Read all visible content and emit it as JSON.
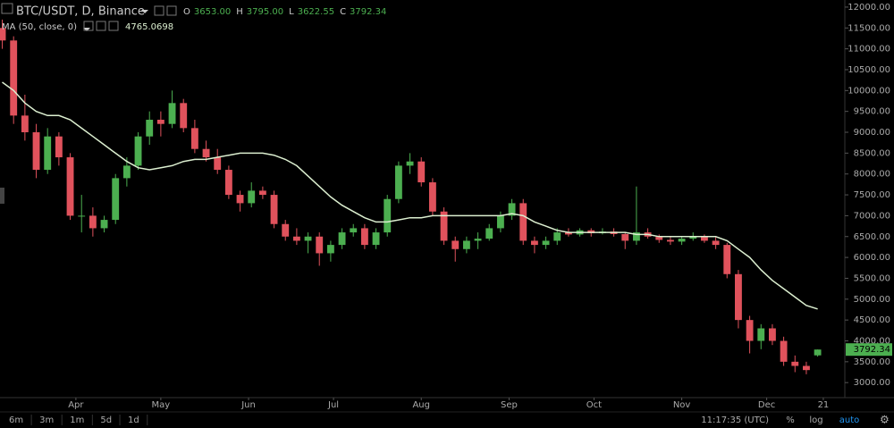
{
  "chart_data": {
    "type": "candlestick",
    "title": "BTC/USDT, D, Binance",
    "ohlc_header": [
      {
        "label": "O",
        "value": "3653.00"
      },
      {
        "label": "H",
        "value": "3795.00"
      },
      {
        "label": "L",
        "value": "3622.55"
      },
      {
        "label": "C",
        "value": "3792.34"
      }
    ],
    "up_color": "#4caf50",
    "down_color": "#e0525c",
    "ohlc": [
      [
        11500,
        11700,
        11000,
        11200
      ],
      [
        11200,
        11300,
        9200,
        9400
      ],
      [
        9400,
        9900,
        8800,
        9000
      ],
      [
        9000,
        9200,
        7900,
        8100
      ],
      [
        8100,
        9100,
        8000,
        8900
      ],
      [
        8900,
        9000,
        8200,
        8400
      ],
      [
        8400,
        8500,
        6900,
        7000
      ],
      [
        7000,
        7500,
        6600,
        7000
      ],
      [
        7000,
        7200,
        6500,
        6700
      ],
      [
        6700,
        7000,
        6600,
        6900
      ],
      [
        6900,
        8000,
        6800,
        7900
      ],
      [
        7900,
        8400,
        7700,
        8200
      ],
      [
        8200,
        9000,
        8100,
        8900
      ],
      [
        8900,
        9500,
        8700,
        9300
      ],
      [
        9300,
        9500,
        8900,
        9200
      ],
      [
        9200,
        10000,
        9100,
        9700
      ],
      [
        9700,
        9800,
        9000,
        9100
      ],
      [
        9100,
        9300,
        8500,
        8600
      ],
      [
        8600,
        8800,
        8300,
        8400
      ],
      [
        8400,
        8600,
        8000,
        8100
      ],
      [
        8100,
        8200,
        7400,
        7500
      ],
      [
        7500,
        7600,
        7100,
        7300
      ],
      [
        7300,
        7800,
        7200,
        7600
      ],
      [
        7600,
        7700,
        7400,
        7500
      ],
      [
        7500,
        7600,
        6700,
        6800
      ],
      [
        6800,
        6900,
        6400,
        6500
      ],
      [
        6500,
        6700,
        6300,
        6400
      ],
      [
        6400,
        6600,
        6100,
        6500
      ],
      [
        6500,
        6600,
        5800,
        6100
      ],
      [
        6100,
        6400,
        5900,
        6300
      ],
      [
        6300,
        6700,
        6200,
        6600
      ],
      [
        6600,
        6800,
        6500,
        6700
      ],
      [
        6700,
        6800,
        6200,
        6300
      ],
      [
        6300,
        6700,
        6200,
        6600
      ],
      [
        6600,
        7500,
        6500,
        7400
      ],
      [
        7400,
        8300,
        7300,
        8200
      ],
      [
        8200,
        8500,
        8000,
        8300
      ],
      [
        8300,
        8400,
        7700,
        7800
      ],
      [
        7800,
        7900,
        7000,
        7100
      ],
      [
        7100,
        7200,
        6300,
        6400
      ],
      [
        6400,
        6500,
        5900,
        6200
      ],
      [
        6200,
        6500,
        6100,
        6400
      ],
      [
        6400,
        6600,
        6200,
        6450
      ],
      [
        6450,
        6800,
        6400,
        6700
      ],
      [
        6700,
        7100,
        6600,
        7000
      ],
      [
        7000,
        7400,
        6900,
        7300
      ],
      [
        7300,
        7400,
        6300,
        6400
      ],
      [
        6400,
        6500,
        6100,
        6300
      ],
      [
        6300,
        6500,
        6200,
        6400
      ],
      [
        6400,
        6700,
        6300,
        6600
      ],
      [
        6600,
        6700,
        6500,
        6550
      ],
      [
        6550,
        6700,
        6500,
        6650
      ],
      [
        6650,
        6700,
        6500,
        6580
      ],
      [
        6580,
        6700,
        6550,
        6620
      ],
      [
        6620,
        6700,
        6500,
        6560
      ],
      [
        6560,
        6600,
        6200,
        6400
      ],
      [
        6400,
        7700,
        6300,
        6600
      ],
      [
        6600,
        6700,
        6450,
        6500
      ],
      [
        6500,
        6550,
        6350,
        6420
      ],
      [
        6420,
        6500,
        6300,
        6380
      ],
      [
        6380,
        6500,
        6300,
        6450
      ],
      [
        6450,
        6600,
        6400,
        6500
      ],
      [
        6500,
        6550,
        6350,
        6400
      ],
      [
        6400,
        6500,
        6200,
        6300
      ],
      [
        6300,
        6350,
        5500,
        5600
      ],
      [
        5600,
        5700,
        4300,
        4500
      ],
      [
        4500,
        4600,
        3700,
        4000
      ],
      [
        4000,
        4400,
        3800,
        4300
      ],
      [
        4300,
        4400,
        3900,
        4000
      ],
      [
        4000,
        4100,
        3400,
        3500
      ],
      [
        3500,
        3650,
        3250,
        3400
      ],
      [
        3400,
        3500,
        3200,
        3300
      ],
      [
        3653,
        3795,
        3622.55,
        3792.34
      ]
    ],
    "ma": {
      "name": "MA (50, close, 0)",
      "color": "#dcefd0",
      "values": [
        10200,
        10000,
        9700,
        9500,
        9400,
        9400,
        9300,
        9100,
        8900,
        8700,
        8500,
        8300,
        8150,
        8100,
        8150,
        8200,
        8300,
        8350,
        8350,
        8400,
        8450,
        8500,
        8500,
        8500,
        8450,
        8350,
        8200,
        7950,
        7700,
        7450,
        7250,
        7100,
        6950,
        6850,
        6850,
        6900,
        6950,
        6950,
        7000,
        7000,
        7000,
        7000,
        7000,
        7000,
        7000,
        7050,
        7000,
        6850,
        6750,
        6650,
        6600,
        6600,
        6600,
        6600,
        6600,
        6600,
        6550,
        6550,
        6500,
        6500,
        6500,
        6500,
        6500,
        6500,
        6400,
        6200,
        6000,
        5700,
        5450,
        5250,
        5050,
        4850,
        4765.0698
      ]
    },
    "xlim": [
      -0.2,
      74.4
    ],
    "xticks": [
      {
        "value": 6.5,
        "label": "Apr"
      },
      {
        "value": 14,
        "label": "May"
      },
      {
        "value": 21.75,
        "label": "Jun"
      },
      {
        "value": 29.25,
        "label": "Jul"
      },
      {
        "value": 37,
        "label": "Aug"
      },
      {
        "value": 44.75,
        "label": "Sep"
      },
      {
        "value": 52.25,
        "label": "Oct"
      },
      {
        "value": 60,
        "label": "Nov"
      },
      {
        "value": 67.5,
        "label": "Dec"
      },
      {
        "value": 72.5,
        "label": "21"
      }
    ],
    "ylim": [
      2640,
      12170
    ],
    "yticks": [
      {
        "value": 3000,
        "label": "3000.00"
      },
      {
        "value": 3500,
        "label": "3500.00"
      },
      {
        "value": 4000,
        "label": "4000.00"
      },
      {
        "value": 4500,
        "label": "4500.00"
      },
      {
        "value": 5000,
        "label": "5000.00"
      },
      {
        "value": 5500,
        "label": "5500.00"
      },
      {
        "value": 6000,
        "label": "6000.00"
      },
      {
        "value": 6500,
        "label": "6500.00"
      },
      {
        "value": 7000,
        "label": "7000.00"
      },
      {
        "value": 7500,
        "label": "7500.00"
      },
      {
        "value": 8000,
        "label": "8000.00"
      },
      {
        "value": 8500,
        "label": "8500.00"
      },
      {
        "value": 9000,
        "label": "9000.00"
      },
      {
        "value": 9500,
        "label": "9500.00"
      },
      {
        "value": 10000,
        "label": "10000.00"
      },
      {
        "value": 10500,
        "label": "10500.00"
      },
      {
        "value": 11000,
        "label": "11000.00"
      },
      {
        "value": 11500,
        "label": "11500.00"
      },
      {
        "value": 12000,
        "label": "12000.00"
      }
    ]
  },
  "toolbar": {
    "ranges": [
      "6m",
      "3m",
      "1m",
      "5d",
      "1d"
    ],
    "clock": "11:17:35 (UTC)",
    "options": [
      "%",
      "log",
      "auto"
    ]
  }
}
